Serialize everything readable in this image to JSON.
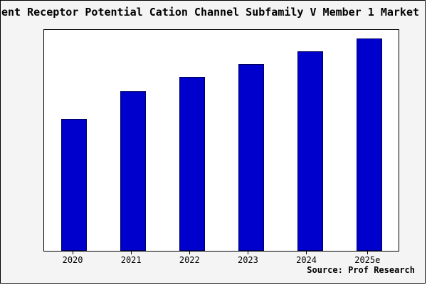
{
  "title": "ent Receptor Potential Cation Channel Subfamily V Member 1 Market",
  "source_text": "Source: Prof Research",
  "chart_data": {
    "type": "bar",
    "title": "ent Receptor Potential Cation Channel Subfamily V Member 1 Market",
    "categories": [
      "2020",
      "2021",
      "2022",
      "2023",
      "2024",
      "2025e"
    ],
    "values": [
      62,
      75,
      82,
      88,
      94,
      100
    ],
    "xlabel": "",
    "ylabel": "",
    "ylim": [
      0,
      104
    ],
    "grid": false,
    "legend": "none",
    "bar_color": "#0000CD",
    "bar_border_color": "#000060",
    "background_color": "#f4f4f4",
    "plot_background_color": "#ffffff",
    "annotation": "Source: Prof Research"
  }
}
